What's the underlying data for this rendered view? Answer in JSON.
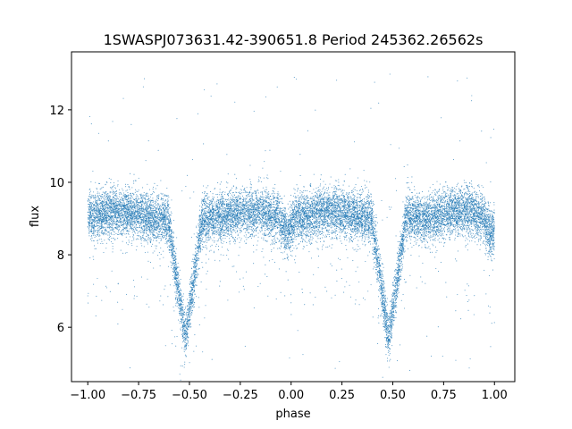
{
  "chart_data": {
    "type": "scatter",
    "title": "1SWASPJ073631.42-390651.8 Period 245362.26562s",
    "xlabel": "phase",
    "ylabel": "flux",
    "xlim": [
      -1.08,
      1.1
    ],
    "ylim": [
      4.5,
      13.6
    ],
    "x_ticks": [
      -1.0,
      -0.75,
      -0.5,
      -0.25,
      0.0,
      0.25,
      0.5,
      0.75,
      1.0
    ],
    "x_tick_labels": [
      "−1.00",
      "−0.75",
      "−0.50",
      "−0.25",
      "0.00",
      "0.25",
      "0.50",
      "0.75",
      "1.00"
    ],
    "y_ticks": [
      6,
      8,
      10,
      12
    ],
    "y_tick_labels": [
      "6",
      "8",
      "10",
      "12"
    ],
    "grid": false,
    "marker_color": "#1f77b4",
    "series": [
      {
        "x_range": [
          -1.0,
          1.0
        ],
        "baseline_flux": 9.0,
        "scatter_sigma": 0.33,
        "outlier_range": [
          4.8,
          13.2
        ],
        "primary_eclipse": {
          "phases": [
            -0.52,
            0.48
          ],
          "min_flux": 5.7,
          "half_width": 0.085
        },
        "secondary_eclipse": {
          "phases": [
            -0.02,
            0.98
          ],
          "min_flux": 8.55,
          "half_width": 0.045
        },
        "max_brightening": {
          "phases": [
            -0.85,
            -0.2,
            0.2,
            0.83
          ],
          "peak_flux": 9.2
        }
      }
    ]
  }
}
